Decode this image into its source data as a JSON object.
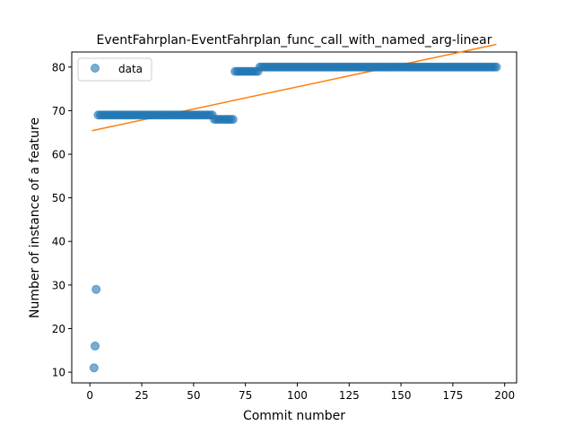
{
  "chart_data": {
    "type": "scatter",
    "title": "EventFahrplan-EventFahrplan_func_call_with_named_arg-linear",
    "xlabel": "Commit number",
    "ylabel": "Number of instance of a feature",
    "xlim": [
      -8.75,
      205.75
    ],
    "ylim": [
      7.55,
      83.45
    ],
    "xticks": [
      0,
      25,
      50,
      75,
      100,
      125,
      150,
      175,
      200
    ],
    "yticks": [
      10,
      20,
      30,
      40,
      50,
      60,
      70,
      80
    ],
    "legend": {
      "position": "upper-left",
      "entries": [
        "data"
      ]
    },
    "colors": {
      "data": "#1f77b4",
      "fit": "#ff7f0e"
    },
    "series": [
      {
        "name": "data",
        "kind": "points",
        "segments": [
          {
            "x_from": 2,
            "x_to": 2,
            "y": 11
          },
          {
            "x_from": 2.5,
            "x_to": 2.5,
            "y": 16
          },
          {
            "x_from": 3,
            "x_to": 3,
            "y": 29
          },
          {
            "x_from": 4,
            "x_to": 59,
            "y": 69
          },
          {
            "x_from": 60,
            "x_to": 69,
            "y": 68
          },
          {
            "x_from": 70,
            "x_to": 81,
            "y": 79
          },
          {
            "x_from": 82,
            "x_to": 196,
            "y": 80
          }
        ]
      },
      {
        "kind": "line",
        "x": [
          1,
          196
        ],
        "y": [
          65.4,
          85.2
        ]
      }
    ]
  }
}
